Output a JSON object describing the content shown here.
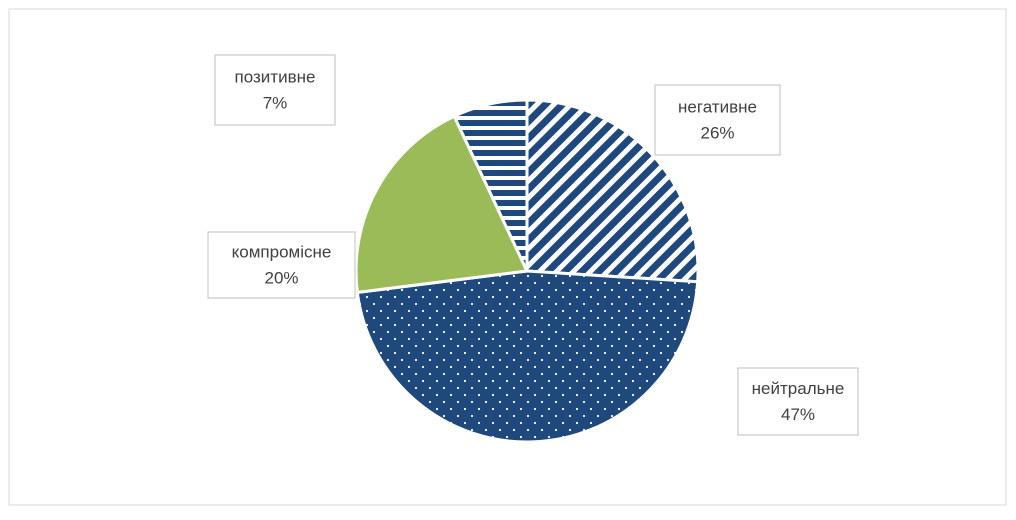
{
  "chart_data": {
    "type": "pie",
    "categories": [
      "негативне",
      "нейтральне",
      "компромісне",
      "позитивне"
    ],
    "values": [
      26,
      47,
      20,
      7
    ],
    "value_labels": [
      "26%",
      "47%",
      "20%",
      "7%"
    ],
    "colors": [
      "#1f497d",
      "#1f497d",
      "#9bbb59",
      "#1f497d"
    ],
    "patterns": [
      "diagonal",
      "dots",
      "solid",
      "horizontal"
    ]
  }
}
